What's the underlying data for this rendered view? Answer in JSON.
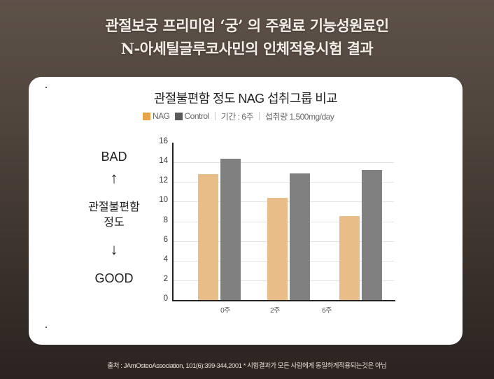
{
  "headline": {
    "line1": "관절보궁 프리미엄 ‘궁’ 의 주원료 기능성원료인",
    "line2": "N-아세틸글루코사민의 인체적용시험 결과"
  },
  "card": {
    "side_labels": {
      "bad": "BAD",
      "up_arrow": "↑",
      "metric_line1": "관절불편함",
      "metric_line2": "정도",
      "down_arrow": "↓",
      "good": "GOOD"
    },
    "legend": {
      "nag": "NAG",
      "control": "Control",
      "period": "기간 : 6주",
      "dose": "섭취량 1,500mg/day"
    }
  },
  "colors": {
    "nag_bar": "#e8bd88",
    "nag_swatch": "#e8a24a",
    "control_bar": "#808080",
    "control_swatch": "#5a5a5a"
  },
  "footnote": "출처 : JAmOsteoAssociation, 101(6):399-344,2001 * 시험결과가 모든 사람에게 동일하게적용되는것은 아님",
  "chart_data": {
    "type": "bar",
    "title": "관절불편함 정도 NAG 섭취그룹 비교",
    "subtitle": "NAG | Control | 기간 : 6주 | 섭취량 1,500mg/day",
    "categories": [
      "0주",
      "2주",
      "6주"
    ],
    "series": [
      {
        "name": "NAG",
        "values": [
          12.8,
          10.4,
          8.5
        ]
      },
      {
        "name": "Control",
        "values": [
          14.4,
          12.9,
          13.2
        ]
      }
    ],
    "xlabel": "",
    "ylabel": "관절불편함 정도 (BAD ↑ / GOOD ↓)",
    "ylim": [
      0,
      16
    ],
    "yticks": [
      0,
      2,
      4,
      6,
      8,
      10,
      12,
      14,
      16
    ],
    "grid": true,
    "legend_position": "top"
  }
}
